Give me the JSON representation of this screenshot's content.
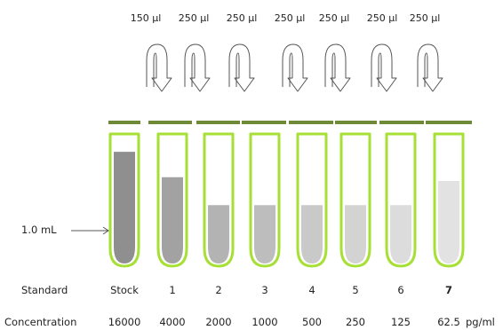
{
  "transfer_volumes": [
    "150 µl",
    "250 µl",
    "250 µl",
    "250 µl",
    "250 µl",
    "250 µl",
    "250 µl"
  ],
  "volume_label": "1.0 mL",
  "standard_row_label": "Standard",
  "concentration_row_label": "Concentration",
  "unit_label": "pg/ml",
  "tubes": [
    {
      "standard": "Stock",
      "concentration": "16000",
      "fill_level": 0.88,
      "fill_color": "#8f8f8f"
    },
    {
      "standard": "1",
      "concentration": "4000",
      "fill_level": 0.68,
      "fill_color": "#a2a2a2"
    },
    {
      "standard": "2",
      "concentration": "2000",
      "fill_level": 0.46,
      "fill_color": "#b3b3b3"
    },
    {
      "standard": "3",
      "concentration": "1000",
      "fill_level": 0.46,
      "fill_color": "#bdbdbd"
    },
    {
      "standard": "4",
      "concentration": "500",
      "fill_level": 0.46,
      "fill_color": "#c9c9c9"
    },
    {
      "standard": "5",
      "concentration": "250",
      "fill_level": 0.46,
      "fill_color": "#d3d3d3"
    },
    {
      "standard": "6",
      "concentration": "125",
      "fill_level": 0.46,
      "fill_color": "#dcdcdc"
    },
    {
      "standard": "7",
      "concentration": "62.5",
      "fill_level": 0.65,
      "fill_color": "#e2e2e2"
    }
  ],
  "colors": {
    "tube_outline": "#a6e034",
    "cap_bar": "#6f8a36",
    "arrow_stroke": "#555555"
  }
}
